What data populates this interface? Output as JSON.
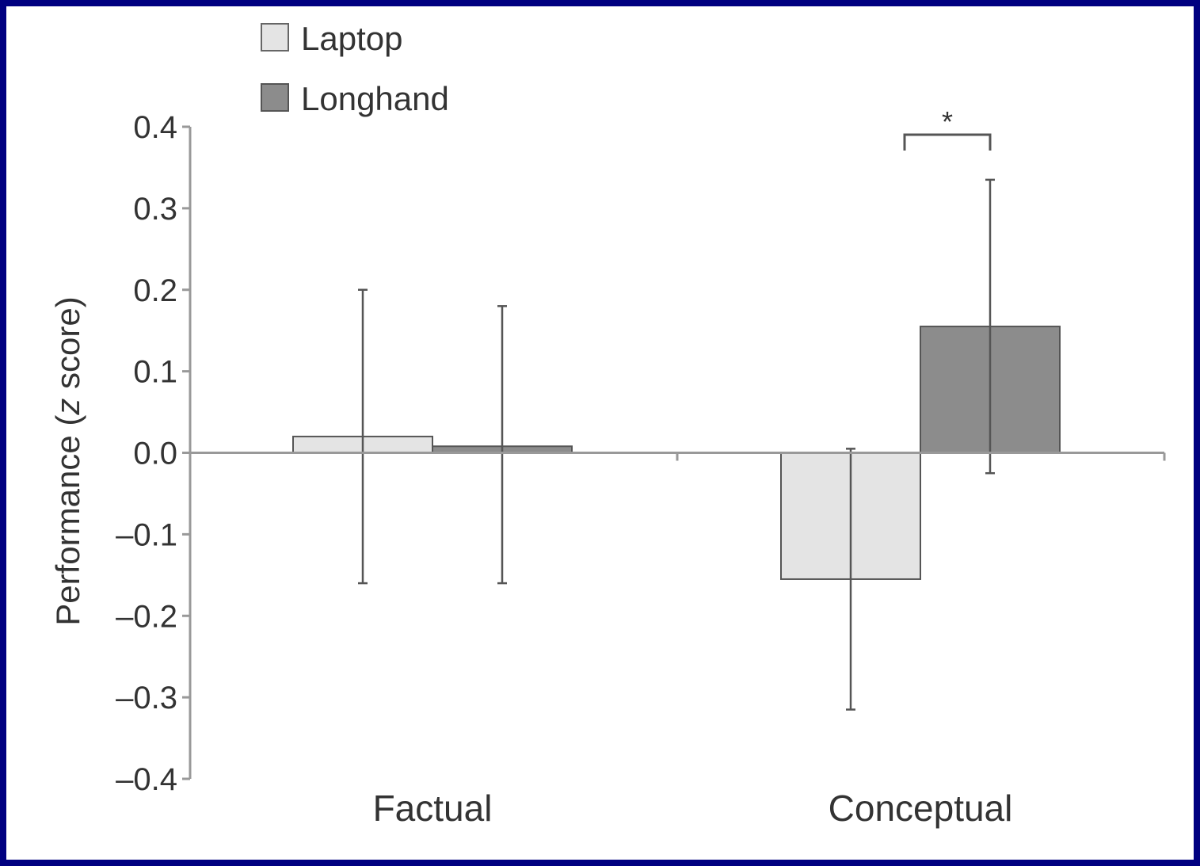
{
  "chart_data": {
    "type": "bar",
    "categories": [
      "Factual",
      "Conceptual"
    ],
    "series": [
      {
        "name": "Laptop",
        "values": [
          0.02,
          -0.155
        ],
        "error_low": [
          -0.16,
          -0.315
        ],
        "error_high": [
          0.2,
          0.005
        ],
        "color": "#e4e4e4"
      },
      {
        "name": "Longhand",
        "values": [
          0.008,
          0.155
        ],
        "error_low": [
          -0.16,
          -0.025
        ],
        "error_high": [
          0.18,
          0.335
        ],
        "color": "#8c8c8c"
      }
    ],
    "ylabel_prefix": "Performance (",
    "ylabel_italic": "z",
    "ylabel_suffix": " score)",
    "ylim": [
      -0.4,
      0.4
    ],
    "yticks": [
      "0.4",
      "0.3",
      "0.2",
      "0.1",
      "0.0",
      "–0.1",
      "–0.2",
      "–0.3",
      "–0.4"
    ],
    "ytick_values": [
      0.4,
      0.3,
      0.2,
      0.1,
      0.0,
      -0.1,
      -0.2,
      -0.3,
      -0.4
    ],
    "significance": {
      "category": "Conceptual",
      "marker": "*"
    },
    "legend_position": "top-left",
    "grid": false
  },
  "colors": {
    "background": "#000080",
    "axis": "#999999",
    "error_bar": "#555555",
    "text": "#333333"
  }
}
